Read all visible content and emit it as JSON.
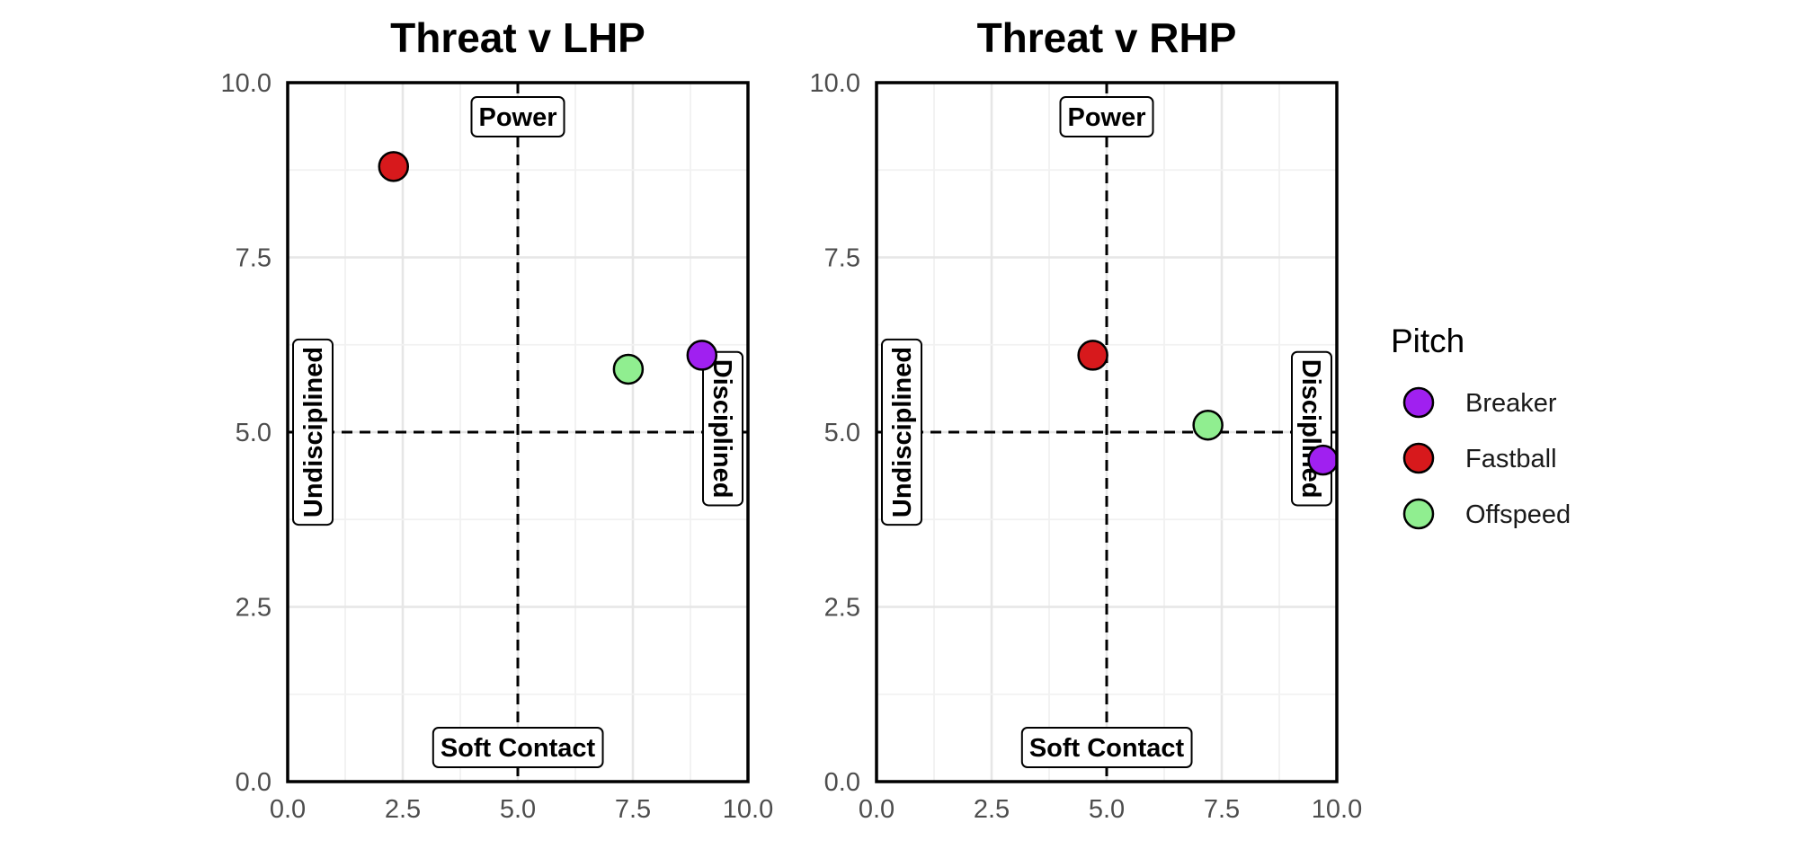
{
  "chart_data": [
    {
      "type": "scatter",
      "title": "Threat v LHP",
      "xlim": [
        0,
        10
      ],
      "ylim": [
        0,
        10
      ],
      "x_ticks": [
        "0.0",
        "2.5",
        "5.0",
        "7.5",
        "10.0"
      ],
      "y_ticks": [
        "0.0",
        "2.5",
        "5.0",
        "7.5",
        "10.0"
      ],
      "grid": true,
      "reference_lines": {
        "x": 5,
        "y": 5
      },
      "quadrant_labels": {
        "top": "Power",
        "bottom": "Soft Contact",
        "left": "Undisciplined",
        "right": "Disciplined"
      },
      "series": [
        {
          "name": "Breaker",
          "x": [
            9.0
          ],
          "y": [
            6.1
          ]
        },
        {
          "name": "Fastball",
          "x": [
            2.3
          ],
          "y": [
            8.8
          ]
        },
        {
          "name": "Offspeed",
          "x": [
            7.4
          ],
          "y": [
            5.9
          ]
        }
      ]
    },
    {
      "type": "scatter",
      "title": "Threat v RHP",
      "xlim": [
        0,
        10
      ],
      "ylim": [
        0,
        10
      ],
      "x_ticks": [
        "0.0",
        "2.5",
        "5.0",
        "7.5",
        "10.0"
      ],
      "y_ticks": [
        "0.0",
        "2.5",
        "5.0",
        "7.5",
        "10.0"
      ],
      "grid": true,
      "reference_lines": {
        "x": 5,
        "y": 5
      },
      "quadrant_labels": {
        "top": "Power",
        "bottom": "Soft Contact",
        "left": "Undisciplined",
        "right": "Disciplined"
      },
      "series": [
        {
          "name": "Breaker",
          "x": [
            9.7
          ],
          "y": [
            4.6
          ]
        },
        {
          "name": "Fastball",
          "x": [
            4.7
          ],
          "y": [
            6.1
          ]
        },
        {
          "name": "Offspeed",
          "x": [
            7.2
          ],
          "y": [
            5.1
          ]
        }
      ]
    }
  ],
  "legend": {
    "title": "Pitch",
    "placement": "right",
    "items": [
      {
        "label": "Breaker",
        "color": "#a020f0"
      },
      {
        "label": "Fastball",
        "color": "#d7191c"
      },
      {
        "label": "Offspeed",
        "color": "#90ee90"
      }
    ]
  },
  "colors": {
    "Breaker": "#a020f0",
    "Fastball": "#d7191c",
    "Offspeed": "#90ee90"
  }
}
